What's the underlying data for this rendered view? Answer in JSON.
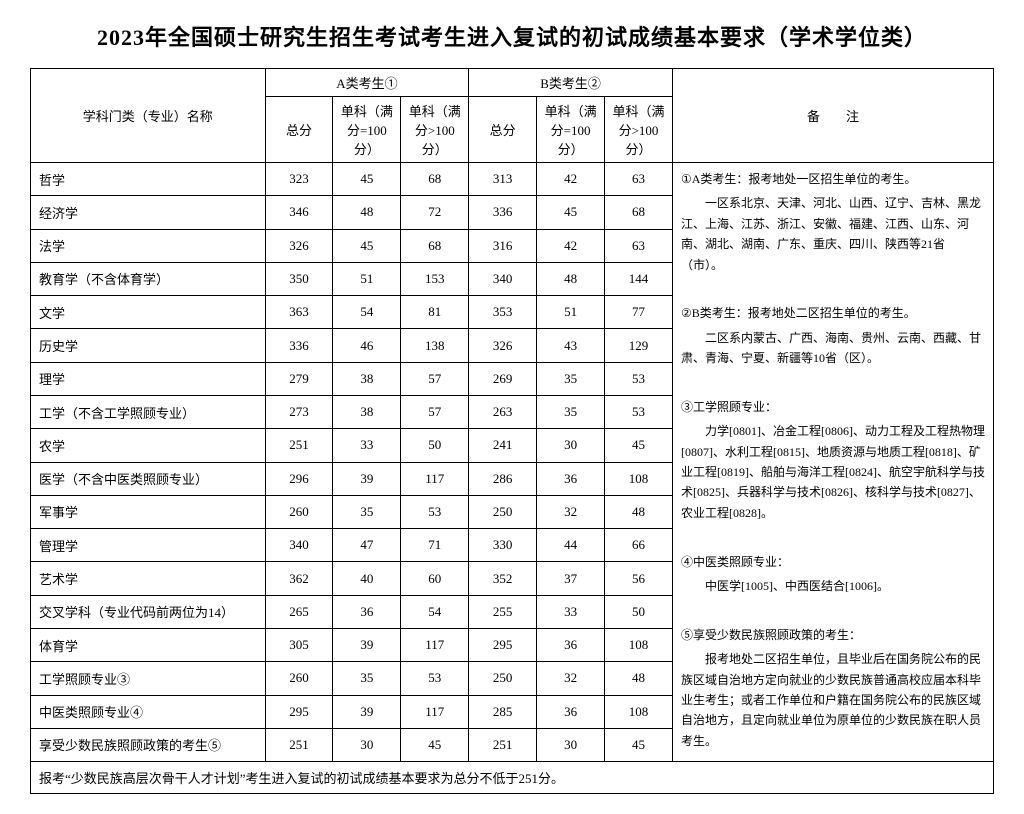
{
  "title": "2023年全国硕士研究生招生考试考生进入复试的初试成绩基本要求（学术学位类）",
  "header": {
    "subject": "学科门类（专业）名称",
    "groupA": "A类考生①",
    "groupB": "B类考生②",
    "notes": "备　　注",
    "total": "总分",
    "sub100": "单科（满分=100分）",
    "subOver100": "单科（满分>100分）"
  },
  "rows": [
    {
      "subject": "哲学",
      "a_total": "323",
      "a_s100": "45",
      "a_sOver": "68",
      "b_total": "313",
      "b_s100": "42",
      "b_sOver": "63"
    },
    {
      "subject": "经济学",
      "a_total": "346",
      "a_s100": "48",
      "a_sOver": "72",
      "b_total": "336",
      "b_s100": "45",
      "b_sOver": "68"
    },
    {
      "subject": "法学",
      "a_total": "326",
      "a_s100": "45",
      "a_sOver": "68",
      "b_total": "316",
      "b_s100": "42",
      "b_sOver": "63"
    },
    {
      "subject": "教育学（不含体育学）",
      "a_total": "350",
      "a_s100": "51",
      "a_sOver": "153",
      "b_total": "340",
      "b_s100": "48",
      "b_sOver": "144"
    },
    {
      "subject": "文学",
      "a_total": "363",
      "a_s100": "54",
      "a_sOver": "81",
      "b_total": "353",
      "b_s100": "51",
      "b_sOver": "77"
    },
    {
      "subject": "历史学",
      "a_total": "336",
      "a_s100": "46",
      "a_sOver": "138",
      "b_total": "326",
      "b_s100": "43",
      "b_sOver": "129"
    },
    {
      "subject": "理学",
      "a_total": "279",
      "a_s100": "38",
      "a_sOver": "57",
      "b_total": "269",
      "b_s100": "35",
      "b_sOver": "53"
    },
    {
      "subject": "工学（不含工学照顾专业）",
      "a_total": "273",
      "a_s100": "38",
      "a_sOver": "57",
      "b_total": "263",
      "b_s100": "35",
      "b_sOver": "53"
    },
    {
      "subject": "农学",
      "a_total": "251",
      "a_s100": "33",
      "a_sOver": "50",
      "b_total": "241",
      "b_s100": "30",
      "b_sOver": "45"
    },
    {
      "subject": "医学（不含中医类照顾专业）",
      "a_total": "296",
      "a_s100": "39",
      "a_sOver": "117",
      "b_total": "286",
      "b_s100": "36",
      "b_sOver": "108"
    },
    {
      "subject": "军事学",
      "a_total": "260",
      "a_s100": "35",
      "a_sOver": "53",
      "b_total": "250",
      "b_s100": "32",
      "b_sOver": "48"
    },
    {
      "subject": "管理学",
      "a_total": "340",
      "a_s100": "47",
      "a_sOver": "71",
      "b_total": "330",
      "b_s100": "44",
      "b_sOver": "66"
    },
    {
      "subject": "艺术学",
      "a_total": "362",
      "a_s100": "40",
      "a_sOver": "60",
      "b_total": "352",
      "b_s100": "37",
      "b_sOver": "56"
    },
    {
      "subject": "交叉学科（专业代码前两位为14）",
      "a_total": "265",
      "a_s100": "36",
      "a_sOver": "54",
      "b_total": "255",
      "b_s100": "33",
      "b_sOver": "50"
    },
    {
      "subject": "体育学",
      "a_total": "305",
      "a_s100": "39",
      "a_sOver": "117",
      "b_total": "295",
      "b_s100": "36",
      "b_sOver": "108"
    },
    {
      "subject": "工学照顾专业③",
      "a_total": "260",
      "a_s100": "35",
      "a_sOver": "53",
      "b_total": "250",
      "b_s100": "32",
      "b_sOver": "48"
    },
    {
      "subject": "中医类照顾专业④",
      "a_total": "295",
      "a_s100": "39",
      "a_sOver": "117",
      "b_total": "285",
      "b_s100": "36",
      "b_sOver": "108"
    },
    {
      "subject": "享受少数民族照顾政策的考生⑤",
      "a_total": "251",
      "a_s100": "30",
      "a_sOver": "45",
      "b_total": "251",
      "b_s100": "30",
      "b_sOver": "45"
    }
  ],
  "footer": "报考“少数民族高层次骨干人才计划”考生进入复试的初试成绩基本要求为总分不低于251分。",
  "notes": [
    "①A类考生：报考地处一区招生单位的考生。",
    "　　一区系北京、天津、河北、山西、辽宁、吉林、黑龙江、上海、江苏、浙江、安徽、福建、江西、山东、河南、湖北、湖南、广东、重庆、四川、陕西等21省（市）。",
    "",
    "②B类考生：报考地处二区招生单位的考生。",
    "　　二区系内蒙古、广西、海南、贵州、云南、西藏、甘肃、青海、宁夏、新疆等10省（区）。",
    "",
    "③工学照顾专业：",
    "　　力学[0801]、冶金工程[0806]、动力工程及工程热物理[0807]、水利工程[0815]、地质资源与地质工程[0818]、矿业工程[0819]、船舶与海洋工程[0824]、航空宇航科学与技术[0825]、兵器科学与技术[0826]、核科学与技术[0827]、农业工程[0828]。",
    "",
    "④中医类照顾专业：",
    "　　中医学[1005]、中西医结合[1006]。",
    "",
    "⑤享受少数民族照顾政策的考生：",
    "　　报考地处二区招生单位，且毕业后在国务院公布的民族区域自治地方定向就业的少数民族普通高校应届本科毕业生考生；或者工作单位和户籍在国务院公布的民族区域自治地方，且定向就业单位为原单位的少数民族在职人员考生。"
  ]
}
